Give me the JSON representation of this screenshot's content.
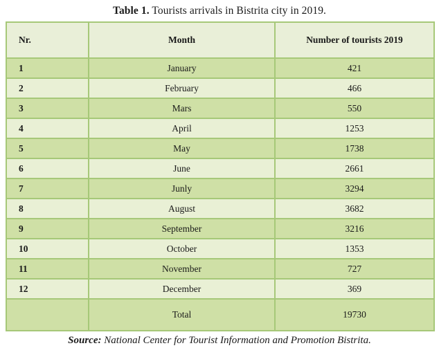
{
  "caption": {
    "label": "Table 1.",
    "text": " Tourists arrivals in Bistrita city in 2019."
  },
  "table": {
    "headers": {
      "nr": "Nr.",
      "month": "Month",
      "count": "Number of tourists 2019"
    },
    "rows": [
      {
        "nr": "1",
        "month": "January",
        "count": "421"
      },
      {
        "nr": "2",
        "month": "February",
        "count": "466"
      },
      {
        "nr": "3",
        "month": "Mars",
        "count": "550"
      },
      {
        "nr": "4",
        "month": "April",
        "count": "1253"
      },
      {
        "nr": "5",
        "month": "May",
        "count": "1738"
      },
      {
        "nr": "6",
        "month": "June",
        "count": "2661"
      },
      {
        "nr": "7",
        "month": "Junly",
        "count": "3294"
      },
      {
        "nr": "8",
        "month": "August",
        "count": "3682"
      },
      {
        "nr": "9",
        "month": "September",
        "count": "3216"
      },
      {
        "nr": "10",
        "month": "October",
        "count": "1353"
      },
      {
        "nr": "11",
        "month": "November",
        "count": "727"
      },
      {
        "nr": "12",
        "month": "December",
        "count": "369"
      }
    ],
    "total": {
      "nr": "",
      "label": "Total",
      "value": "19730"
    }
  },
  "source": {
    "label": "Source:",
    "text": " National Center for Tourist Information and Promotion Bistrita."
  },
  "colors": {
    "header_bg": "#e9efd8",
    "row_odd": "#cfe0a6",
    "row_even": "#e9f0d5",
    "border": "#a6c878",
    "text": "#1a1a1a",
    "page_bg": "#ffffff"
  }
}
